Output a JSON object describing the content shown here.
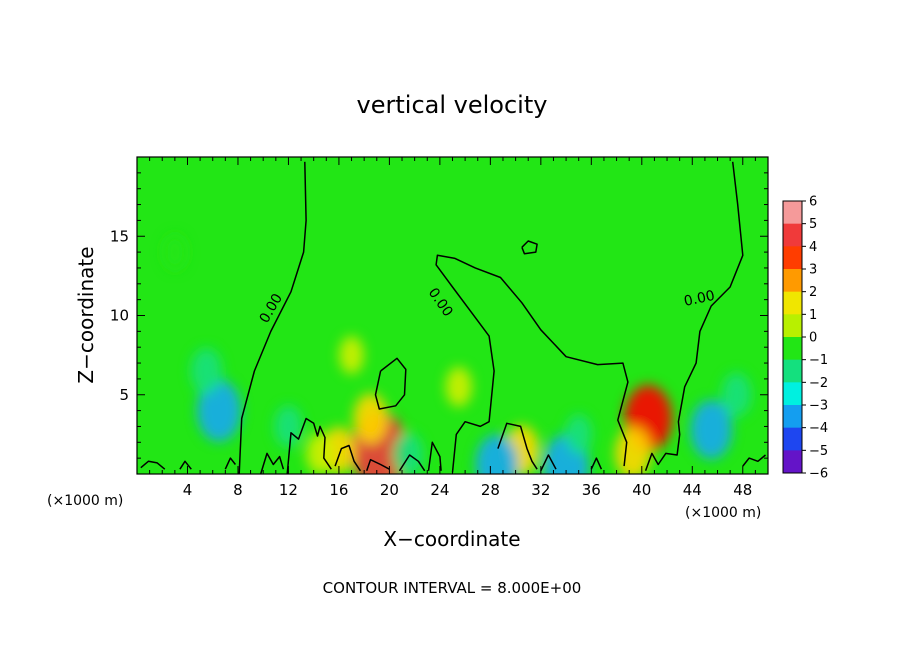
{
  "chart_data": {
    "type": "heatmap",
    "title": "vertical velocity",
    "xlabel": "X−coordinate",
    "ylabel": "Z−coordinate",
    "x_unit_label": "(×1000 m)",
    "z_unit_label": "(×1000 m)",
    "xlim": [
      0,
      50
    ],
    "ylim": [
      0,
      20
    ],
    "x_ticks": [
      {
        "value": 4,
        "label": "4"
      },
      {
        "value": 8,
        "label": "8"
      },
      {
        "value": 12,
        "label": "12"
      },
      {
        "value": 16,
        "label": "16"
      },
      {
        "value": 20,
        "label": "20"
      },
      {
        "value": 24,
        "label": "24"
      },
      {
        "value": 28,
        "label": "28"
      },
      {
        "value": 32,
        "label": "32"
      },
      {
        "value": 36,
        "label": "36"
      },
      {
        "value": 40,
        "label": "40"
      },
      {
        "value": 44,
        "label": "44"
      },
      {
        "value": 48,
        "label": "48"
      }
    ],
    "y_ticks": [
      {
        "value": 5,
        "label": "5"
      },
      {
        "value": 10,
        "label": "10"
      },
      {
        "value": 15,
        "label": "15"
      }
    ],
    "colorbar": {
      "range": [
        -6,
        6
      ],
      "ticks": [
        {
          "value": 6,
          "label": "6"
        },
        {
          "value": 5,
          "label": "5"
        },
        {
          "value": 4,
          "label": "4"
        },
        {
          "value": 3,
          "label": "3"
        },
        {
          "value": 2,
          "label": "2"
        },
        {
          "value": 1,
          "label": "1"
        },
        {
          "value": 0,
          "label": "0"
        },
        {
          "value": -1,
          "label": "−1"
        },
        {
          "value": -2,
          "label": "−2"
        },
        {
          "value": -3,
          "label": "−3"
        },
        {
          "value": -4,
          "label": "−4"
        },
        {
          "value": -5,
          "label": "−5"
        },
        {
          "value": -6,
          "label": "−6"
        }
      ]
    },
    "contour_label": "0.00",
    "contour_interval_text": "CONTOUR INTERVAL = 8.000E+00",
    "features": [
      {
        "x": 19.2,
        "z": 1.5,
        "value": 4.5
      },
      {
        "x": 18.5,
        "z": 3.5,
        "value": 1.8
      },
      {
        "x": 16.0,
        "z": 1.5,
        "value": 1.5
      },
      {
        "x": 14.5,
        "z": 1.3,
        "value": 1.0
      },
      {
        "x": 17.0,
        "z": 7.5,
        "value": 0.6
      },
      {
        "x": 25.5,
        "z": 5.5,
        "value": 0.8
      },
      {
        "x": 30.5,
        "z": 1.5,
        "value": 1.8
      },
      {
        "x": 40.5,
        "z": 3.5,
        "value": 3.5
      },
      {
        "x": 39.3,
        "z": 1.3,
        "value": 2.0
      },
      {
        "x": 6.5,
        "z": 4.0,
        "value": -3.0
      },
      {
        "x": 5.5,
        "z": 6.5,
        "value": -1.4
      },
      {
        "x": 3.0,
        "z": 14.0,
        "value": -0.4
      },
      {
        "x": 45.5,
        "z": 2.8,
        "value": -2.7
      },
      {
        "x": 47.5,
        "z": 5.0,
        "value": -1.2
      },
      {
        "x": 28.5,
        "z": 0.6,
        "value": -2.8
      },
      {
        "x": 34.0,
        "z": 0.5,
        "value": -3.2
      },
      {
        "x": 21.5,
        "z": 1.2,
        "value": -1.3
      },
      {
        "x": 12.0,
        "z": 3.0,
        "value": -1.0
      },
      {
        "x": 35.0,
        "z": 2.5,
        "value": -0.8
      }
    ],
    "zero_contours": [
      [
        [
          0.3,
          0.4
        ],
        [
          0.9,
          0.8
        ],
        [
          1.6,
          0.7
        ],
        [
          2.2,
          0.3
        ]
      ],
      [
        [
          3.4,
          0.3
        ],
        [
          3.8,
          0.8
        ],
        [
          4.3,
          0.3
        ]
      ],
      [
        [
          7.0,
          0.3
        ],
        [
          7.4,
          1.0
        ],
        [
          7.8,
          0.6
        ]
      ],
      [
        [
          8.1,
          0.0
        ],
        [
          8.3,
          3.5
        ],
        [
          9.3,
          6.5
        ],
        [
          10.6,
          9.0
        ],
        [
          12.2,
          11.5
        ],
        [
          13.2,
          14.0
        ],
        [
          13.4,
          16.0
        ],
        [
          13.3,
          19.7
        ]
      ],
      [
        [
          9.8,
          0.0
        ],
        [
          10.3,
          1.3
        ],
        [
          10.8,
          0.6
        ],
        [
          11.3,
          1.1
        ],
        [
          11.6,
          0.3
        ]
      ],
      [
        [
          11.9,
          0.0
        ],
        [
          12.2,
          2.6
        ],
        [
          12.8,
          2.2
        ],
        [
          13.4,
          3.5
        ],
        [
          14.0,
          3.2
        ],
        [
          14.3,
          2.4
        ],
        [
          14.5,
          3.0
        ],
        [
          14.9,
          2.3
        ],
        [
          14.8,
          1.0
        ],
        [
          15.4,
          0.3
        ]
      ],
      [
        [
          15.7,
          0.5
        ],
        [
          16.2,
          1.6
        ],
        [
          16.8,
          1.8
        ],
        [
          17.2,
          0.8
        ],
        [
          17.7,
          0.2
        ]
      ],
      [
        [
          18.2,
          0.2
        ],
        [
          18.5,
          0.9
        ],
        [
          19.3,
          0.6
        ],
        [
          20.0,
          0.3
        ]
      ],
      [
        [
          19.3,
          6.5
        ],
        [
          20.6,
          7.3
        ],
        [
          21.3,
          6.6
        ],
        [
          21.2,
          5.0
        ],
        [
          20.5,
          4.3
        ],
        [
          19.2,
          4.1
        ],
        [
          18.9,
          5.0
        ],
        [
          19.3,
          6.5
        ]
      ],
      [
        [
          20.8,
          0.2
        ],
        [
          21.6,
          1.2
        ],
        [
          22.3,
          0.8
        ],
        [
          22.8,
          0.2
        ]
      ],
      [
        [
          23.1,
          0.2
        ],
        [
          23.4,
          2.0
        ],
        [
          24.0,
          1.1
        ],
        [
          24.1,
          0.2
        ]
      ],
      [
        [
          25.0,
          0.1
        ],
        [
          25.3,
          2.5
        ],
        [
          26.0,
          3.3
        ],
        [
          27.2,
          3.0
        ],
        [
          27.9,
          3.3
        ],
        [
          28.3,
          6.5
        ],
        [
          27.9,
          8.7
        ],
        [
          26.5,
          10.2
        ],
        [
          25.0,
          11.8
        ],
        [
          23.7,
          13.2
        ],
        [
          23.8,
          13.8
        ],
        [
          25.2,
          13.6
        ],
        [
          26.8,
          13.0
        ],
        [
          28.8,
          12.4
        ],
        [
          30.5,
          10.8
        ],
        [
          32.0,
          9.1
        ],
        [
          34.0,
          7.4
        ],
        [
          36.5,
          6.9
        ],
        [
          38.5,
          7.0
        ],
        [
          38.9,
          5.8
        ],
        [
          38.4,
          4.3
        ],
        [
          38.1,
          3.4
        ],
        [
          38.8,
          2.0
        ],
        [
          38.6,
          0.5
        ]
      ],
      [
        [
          28.6,
          1.6
        ],
        [
          29.3,
          3.2
        ],
        [
          30.4,
          3.0
        ],
        [
          30.9,
          1.6
        ],
        [
          31.3,
          0.8
        ],
        [
          31.7,
          0.3
        ]
      ],
      [
        [
          30.5,
          14.3
        ],
        [
          31.0,
          14.7
        ],
        [
          31.7,
          14.5
        ],
        [
          31.6,
          14.0
        ],
        [
          30.7,
          13.9
        ],
        [
          30.5,
          14.3
        ]
      ],
      [
        [
          32.0,
          0.2
        ],
        [
          32.6,
          1.2
        ],
        [
          33.2,
          0.3
        ]
      ],
      [
        [
          36.0,
          0.3
        ],
        [
          36.4,
          1.0
        ],
        [
          36.8,
          0.3
        ]
      ],
      [
        [
          40.3,
          0.2
        ],
        [
          40.8,
          1.3
        ],
        [
          41.3,
          0.6
        ],
        [
          41.9,
          1.3
        ],
        [
          42.8,
          1.2
        ],
        [
          43.0,
          2.5
        ],
        [
          42.9,
          3.3
        ],
        [
          43.4,
          5.5
        ],
        [
          44.3,
          7.0
        ],
        [
          44.6,
          9.0
        ],
        [
          45.5,
          10.6
        ],
        [
          47.0,
          11.8
        ],
        [
          48.0,
          13.8
        ],
        [
          47.6,
          17.0
        ],
        [
          47.2,
          19.7
        ]
      ],
      [
        [
          48.0,
          0.5
        ],
        [
          48.5,
          1.0
        ],
        [
          49.2,
          0.8
        ],
        [
          49.8,
          1.2
        ]
      ]
    ]
  }
}
